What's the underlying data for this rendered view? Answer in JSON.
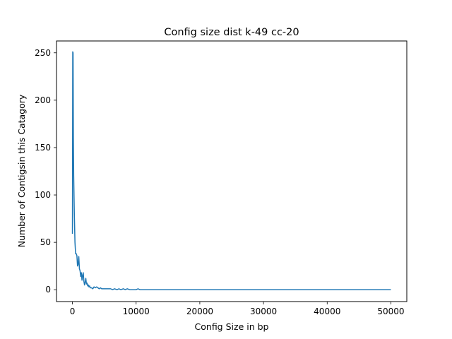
{
  "chart_data": {
    "type": "line",
    "title": "Config size dist k-49 cc-20",
    "xlabel": "Config Size in bp",
    "ylabel": "Number of Contigsin this Catagory",
    "xlim": [
      -2500,
      52500
    ],
    "ylim": [
      -12.5,
      262.5
    ],
    "xticks": [
      0,
      10000,
      20000,
      30000,
      40000,
      50000
    ],
    "xtick_labels": [
      "0",
      "10000",
      "20000",
      "30000",
      "40000",
      "50000"
    ],
    "yticks": [
      0,
      50,
      100,
      150,
      200,
      250
    ],
    "ytick_labels": [
      "0",
      "50",
      "100",
      "150",
      "200",
      "250"
    ],
    "grid": false,
    "series": [
      {
        "color": "#1f77b4",
        "x": [
          0,
          50,
          100,
          150,
          200,
          300,
          400,
          500,
          600,
          700,
          800,
          900,
          1000,
          1100,
          1200,
          1300,
          1400,
          1500,
          1600,
          1700,
          1800,
          1900,
          2000,
          2100,
          2200,
          2300,
          2400,
          2500,
          2600,
          2700,
          2800,
          2900,
          3000,
          3200,
          3400,
          3600,
          3800,
          4000,
          4200,
          4400,
          4600,
          4800,
          5000,
          5300,
          5600,
          6000,
          6300,
          6600,
          7000,
          7300,
          7600,
          8000,
          8300,
          8600,
          9000,
          9300,
          9600,
          10000,
          10300,
          10600,
          11000,
          12000,
          15000,
          20000,
          30000,
          40000,
          50000
        ],
        "y": [
          59,
          251,
          250,
          160,
          120,
          80,
          50,
          38,
          38,
          36,
          25,
          27,
          35,
          22,
          20,
          14,
          18,
          10,
          15,
          18,
          9,
          5,
          8,
          12,
          6,
          7,
          4,
          5,
          3,
          4,
          2,
          2,
          2,
          1,
          3,
          2,
          3,
          2,
          1,
          2,
          1,
          1,
          1,
          1,
          1,
          1,
          0,
          1,
          0,
          1,
          0,
          1,
          0,
          1,
          0,
          0,
          0,
          0,
          1,
          0,
          0,
          0,
          0,
          0,
          0,
          0,
          0
        ]
      }
    ]
  }
}
